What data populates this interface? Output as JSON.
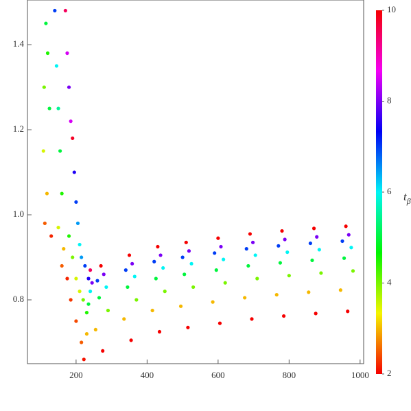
{
  "chart_data": {
    "type": "scatter",
    "x": [
      115,
      120,
      110,
      125,
      108,
      118,
      112,
      130,
      140,
      145,
      150,
      155,
      160,
      150,
      165,
      160,
      175,
      185,
      200,
      215,
      222,
      170,
      175,
      180,
      185,
      190,
      195,
      200,
      205,
      210,
      215,
      225,
      235,
      240,
      235,
      230,
      220,
      210,
      200,
      190,
      180,
      230,
      240,
      245,
      270,
      278,
      260,
      285,
      265,
      290,
      255,
      275,
      350,
      358,
      340,
      365,
      345,
      370,
      335,
      355,
      430,
      438,
      420,
      445,
      425,
      450,
      415,
      435,
      510,
      518,
      500,
      525,
      505,
      530,
      495,
      515,
      600,
      608,
      590,
      615,
      595,
      620,
      585,
      605,
      690,
      698,
      680,
      705,
      685,
      710,
      675,
      695,
      780,
      788,
      770,
      795,
      775,
      800,
      765,
      785,
      870,
      878,
      860,
      885,
      865,
      890,
      855,
      875,
      960,
      968,
      950,
      975,
      955,
      980,
      945,
      965
    ],
    "y": [
      1.45,
      1.38,
      1.3,
      1.25,
      1.15,
      1.05,
      0.98,
      0.95,
      1.48,
      1.35,
      1.25,
      1.15,
      1.05,
      0.97,
      0.92,
      0.88,
      0.85,
      0.8,
      0.75,
      0.7,
      0.66,
      1.48,
      1.38,
      1.3,
      1.22,
      1.18,
      1.1,
      1.03,
      0.98,
      0.93,
      0.9,
      0.88,
      0.85,
      0.82,
      0.79,
      0.77,
      0.8,
      0.82,
      0.85,
      0.9,
      0.95,
      0.72,
      0.87,
      0.84,
      0.88,
      0.86,
      0.845,
      0.83,
      0.805,
      0.775,
      0.73,
      0.68,
      0.905,
      0.885,
      0.87,
      0.855,
      0.83,
      0.8,
      0.755,
      0.705,
      0.925,
      0.905,
      0.89,
      0.875,
      0.85,
      0.82,
      0.775,
      0.725,
      0.935,
      0.915,
      0.9,
      0.885,
      0.86,
      0.83,
      0.785,
      0.735,
      0.945,
      0.925,
      0.91,
      0.895,
      0.87,
      0.84,
      0.795,
      0.745,
      0.955,
      0.935,
      0.92,
      0.905,
      0.88,
      0.85,
      0.805,
      0.755,
      0.962,
      0.942,
      0.927,
      0.912,
      0.887,
      0.857,
      0.812,
      0.762,
      0.968,
      0.948,
      0.933,
      0.918,
      0.893,
      0.863,
      0.818,
      0.768,
      0.973,
      0.953,
      0.938,
      0.923,
      0.898,
      0.868,
      0.823,
      0.773
    ],
    "c": [
      5,
      4.5,
      4,
      5,
      3.5,
      3,
      2.5,
      2.2,
      7,
      6,
      5.5,
      5,
      4.5,
      3.5,
      3,
      2.5,
      2.2,
      2.3,
      2.4,
      2.5,
      2.1,
      9.5,
      8.5,
      8,
      8.5,
      9.8,
      7.5,
      7,
      6.5,
      6,
      6.5,
      7,
      7.5,
      6,
      5,
      4.5,
      4,
      3.5,
      3.5,
      4,
      4.5,
      3,
      9.5,
      8,
      10,
      8,
      7,
      6,
      5,
      4,
      3,
      2,
      10,
      8,
      7,
      6,
      5,
      4,
      3,
      2,
      10,
      8,
      7,
      6,
      5,
      4,
      3,
      2,
      10,
      8,
      7,
      6,
      5,
      4,
      3,
      2,
      10,
      8,
      7,
      6,
      5,
      4,
      3,
      2,
      10,
      8,
      7,
      6,
      5,
      4,
      3,
      2,
      10,
      8,
      7,
      6,
      5,
      4,
      3,
      2,
      10,
      8,
      7,
      6,
      5,
      4,
      3,
      2,
      10,
      8,
      7,
      6,
      5,
      4,
      3,
      2
    ],
    "colormap": "hue",
    "xlim": [
      63,
      1010
    ],
    "xticks": [
      200,
      400,
      600,
      800,
      1000
    ],
    "ylim": [
      0.65,
      1.505
    ],
    "yticks": [
      0.8,
      {
        "value": 1,
        "label": "1.0"
      },
      1.2,
      1.4
    ],
    "clim": [
      2,
      10
    ],
    "cticks": [
      2,
      4,
      6,
      8,
      10
    ],
    "colorbar_label": "t",
    "colorbar_label_sub": "β"
  }
}
